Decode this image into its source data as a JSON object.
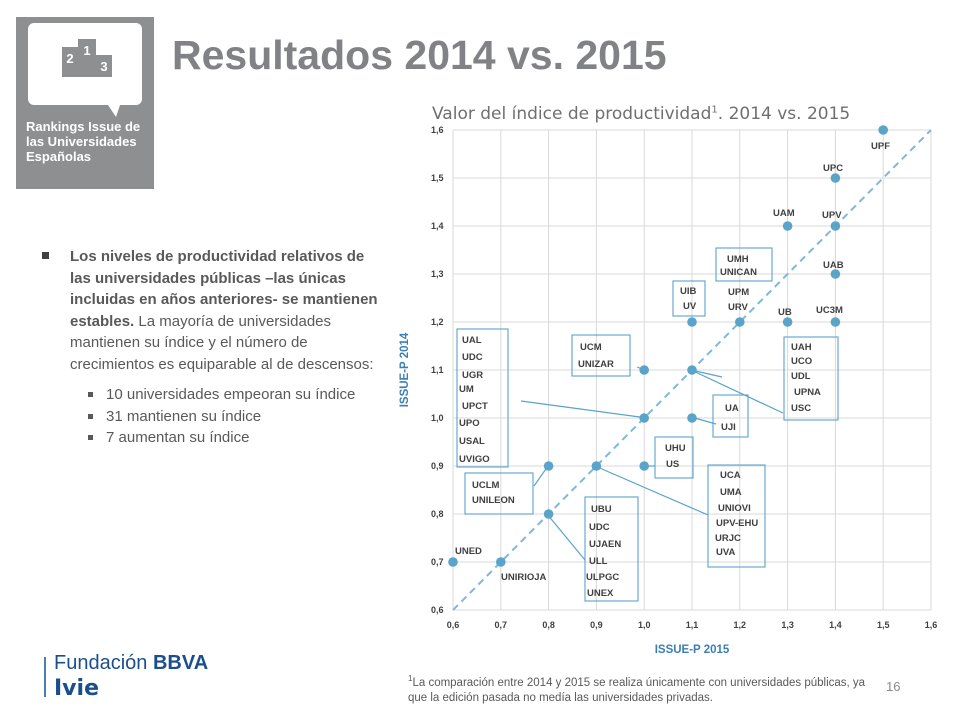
{
  "logo": {
    "podium_numbers": [
      "2",
      "1",
      "3"
    ],
    "lines": [
      "Rankings Issue de",
      "las Universidades",
      "Españolas"
    ]
  },
  "title": "Resultados 2014 vs. 2015",
  "chart_title": {
    "text": "Valor del índice de productividad",
    "sup": "1",
    "rest": ". 2014 vs. 2015"
  },
  "bullets": {
    "main_bold": "Los niveles de productividad relativos de las universidades públicas –las únicas incluidas en años anteriores- se mantienen estables.",
    "main_rest": " La mayoría de universidades mantienen su índice y el número de crecimientos es equiparable al de descensos:",
    "sub": [
      "10 universidades empeoran su índice",
      "31 mantienen su índice",
      "7 aumentan su índice"
    ]
  },
  "footer": {
    "fundacion": "Fundación",
    "bbva": "BBVA",
    "ivie": "Ivie",
    "page": "16",
    "footnote_sup": "1",
    "footnote": "La comparación entre 2014 y 2015 se realiza únicamente con universidades públicas, ya que la edición pasada no medía las universidades privadas."
  },
  "colors": {
    "point": "#5ba3c9",
    "diagonal": "#7fb8d8",
    "box": "#5ba3c9",
    "label": "#404040",
    "logo_bg": "#8e8f91"
  },
  "chart_data": {
    "type": "scatter",
    "xlabel": "ISSUE-P 2015",
    "ylabel": "ISSUE-P 2014",
    "xlim": [
      0.6,
      1.6
    ],
    "ylim": [
      0.6,
      1.6
    ],
    "xticks": [
      "0,6",
      "0,7",
      "0,8",
      "0,9",
      "1,0",
      "1,1",
      "1,2",
      "1,3",
      "1,4",
      "1,5",
      "1,6"
    ],
    "yticks": [
      "0,6",
      "0,7",
      "0,8",
      "0,9",
      "1,0",
      "1,1",
      "1,2",
      "1,3",
      "1,4",
      "1,5",
      "1,6"
    ],
    "reference_line": "y = x (dashed)",
    "points": [
      {
        "x": 0.6,
        "y": 0.7
      },
      {
        "x": 0.7,
        "y": 0.7
      },
      {
        "x": 0.8,
        "y": 0.8
      },
      {
        "x": 0.8,
        "y": 0.9
      },
      {
        "x": 0.9,
        "y": 0.9
      },
      {
        "x": 1.0,
        "y": 0.9
      },
      {
        "x": 1.0,
        "y": 1.0
      },
      {
        "x": 1.0,
        "y": 1.1
      },
      {
        "x": 1.1,
        "y": 1.0
      },
      {
        "x": 1.1,
        "y": 1.1
      },
      {
        "x": 1.1,
        "y": 1.2
      },
      {
        "x": 1.2,
        "y": 1.2
      },
      {
        "x": 1.3,
        "y": 1.2
      },
      {
        "x": 1.3,
        "y": 1.4
      },
      {
        "x": 1.4,
        "y": 1.2
      },
      {
        "x": 1.4,
        "y": 1.3
      },
      {
        "x": 1.4,
        "y": 1.4
      },
      {
        "x": 1.4,
        "y": 1.5
      },
      {
        "x": 1.5,
        "y": 1.6
      }
    ],
    "point_labels": [
      {
        "text": "UPF",
        "x": 1.5,
        "y": 1.6
      },
      {
        "text": "UPC",
        "x": 1.4,
        "y": 1.5
      },
      {
        "text": "UAM",
        "x": 1.3,
        "y": 1.4
      },
      {
        "text": "UPV",
        "x": 1.4,
        "y": 1.4
      },
      {
        "text": "UAB",
        "x": 1.4,
        "y": 1.3
      },
      {
        "text": "UB",
        "x": 1.3,
        "y": 1.2
      },
      {
        "text": "UC3M",
        "x": 1.4,
        "y": 1.2
      },
      {
        "text": "UNED",
        "x": 0.6,
        "y": 0.7
      },
      {
        "text": "UNIRIOJA",
        "x": 0.7,
        "y": 0.7
      }
    ],
    "groups": [
      {
        "labels": [
          "UMH",
          "UNICAN"
        ],
        "x": 1.2,
        "y": 1.2
      },
      {
        "labels": [
          "UPM",
          "URV"
        ],
        "x": 1.2,
        "y": 1.2
      },
      {
        "labels": [
          "UIB",
          "UV"
        ],
        "x": 1.1,
        "y": 1.2
      },
      {
        "labels": [
          "UCM",
          "UNIZAR"
        ],
        "x": 1.0,
        "y": 1.1
      },
      {
        "labels": [
          "UAL",
          "UDC",
          "UGR",
          "UM",
          "UPCT",
          "UPO",
          "USAL",
          "UVIGO"
        ],
        "x": 1.0,
        "y": 1.0
      },
      {
        "labels": [
          "UAH",
          "UCO",
          "UDL",
          "UPNA",
          "USC"
        ],
        "x": 1.1,
        "y": 1.1
      },
      {
        "labels": [
          "UA",
          "UJI"
        ],
        "x": 1.1,
        "y": 1.0
      },
      {
        "labels": [
          "UHU",
          "US"
        ],
        "x": 1.0,
        "y": 0.9
      },
      {
        "labels": [
          "UCLM",
          "UNILEON"
        ],
        "x": 0.8,
        "y": 0.9
      },
      {
        "labels": [
          "UBU",
          "UDC",
          "UJAEN",
          "ULL",
          "ULPGC",
          "UNEX"
        ],
        "x": 0.8,
        "y": 0.8
      },
      {
        "labels": [
          "UCA",
          "UMA",
          "UNIOVI",
          "UPV-EHU",
          "URJC",
          "UVA"
        ],
        "x": 0.9,
        "y": 0.9
      }
    ]
  }
}
